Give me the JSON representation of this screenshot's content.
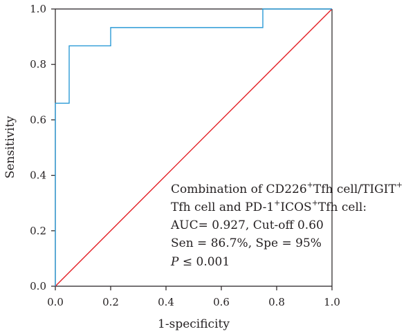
{
  "chart_data": {
    "type": "line",
    "xlabel": "1-specificity",
    "ylabel": "Sensitivity",
    "xlim": [
      0,
      1
    ],
    "ylim": [
      0,
      1
    ],
    "x_ticks": [
      "0.0",
      "0.2",
      "0.4",
      "0.6",
      "0.8",
      "1.0"
    ],
    "y_ticks": [
      "0.0",
      "0.2",
      "0.4",
      "0.6",
      "0.8",
      "1.0"
    ],
    "grid": false,
    "series": [
      {
        "color": "#2b9ad6",
        "style": "step",
        "points": [
          [
            0,
            0
          ],
          [
            0,
            0.66
          ],
          [
            0.05,
            0.66
          ],
          [
            0.05,
            0.867
          ],
          [
            0.2,
            0.867
          ],
          [
            0.2,
            0.933
          ],
          [
            0.75,
            0.933
          ],
          [
            0.75,
            1.0
          ],
          [
            1.0,
            1.0
          ]
        ]
      },
      {
        "color": "#e31e24",
        "style": "diagonal",
        "points": [
          [
            0,
            0
          ],
          [
            1,
            1
          ]
        ]
      }
    ],
    "annotation": {
      "line1": {
        "p1": "Combination of CD226",
        "s1": "+",
        "p2": "Tfh cell/TIGIT",
        "s2": "+"
      },
      "line2": {
        "p1": "Tfh cell and PD-1",
        "s1": "+",
        "p2": "ICOS",
        "s2": "+",
        "p3": "Tfh cell:"
      },
      "line3": "AUC= 0.927, Cut-off 0.60",
      "line4": "Sen = 86.7%, Spe = 95%",
      "line5": {
        "italic": "P",
        "rest": " ≤ 0.001"
      }
    }
  }
}
